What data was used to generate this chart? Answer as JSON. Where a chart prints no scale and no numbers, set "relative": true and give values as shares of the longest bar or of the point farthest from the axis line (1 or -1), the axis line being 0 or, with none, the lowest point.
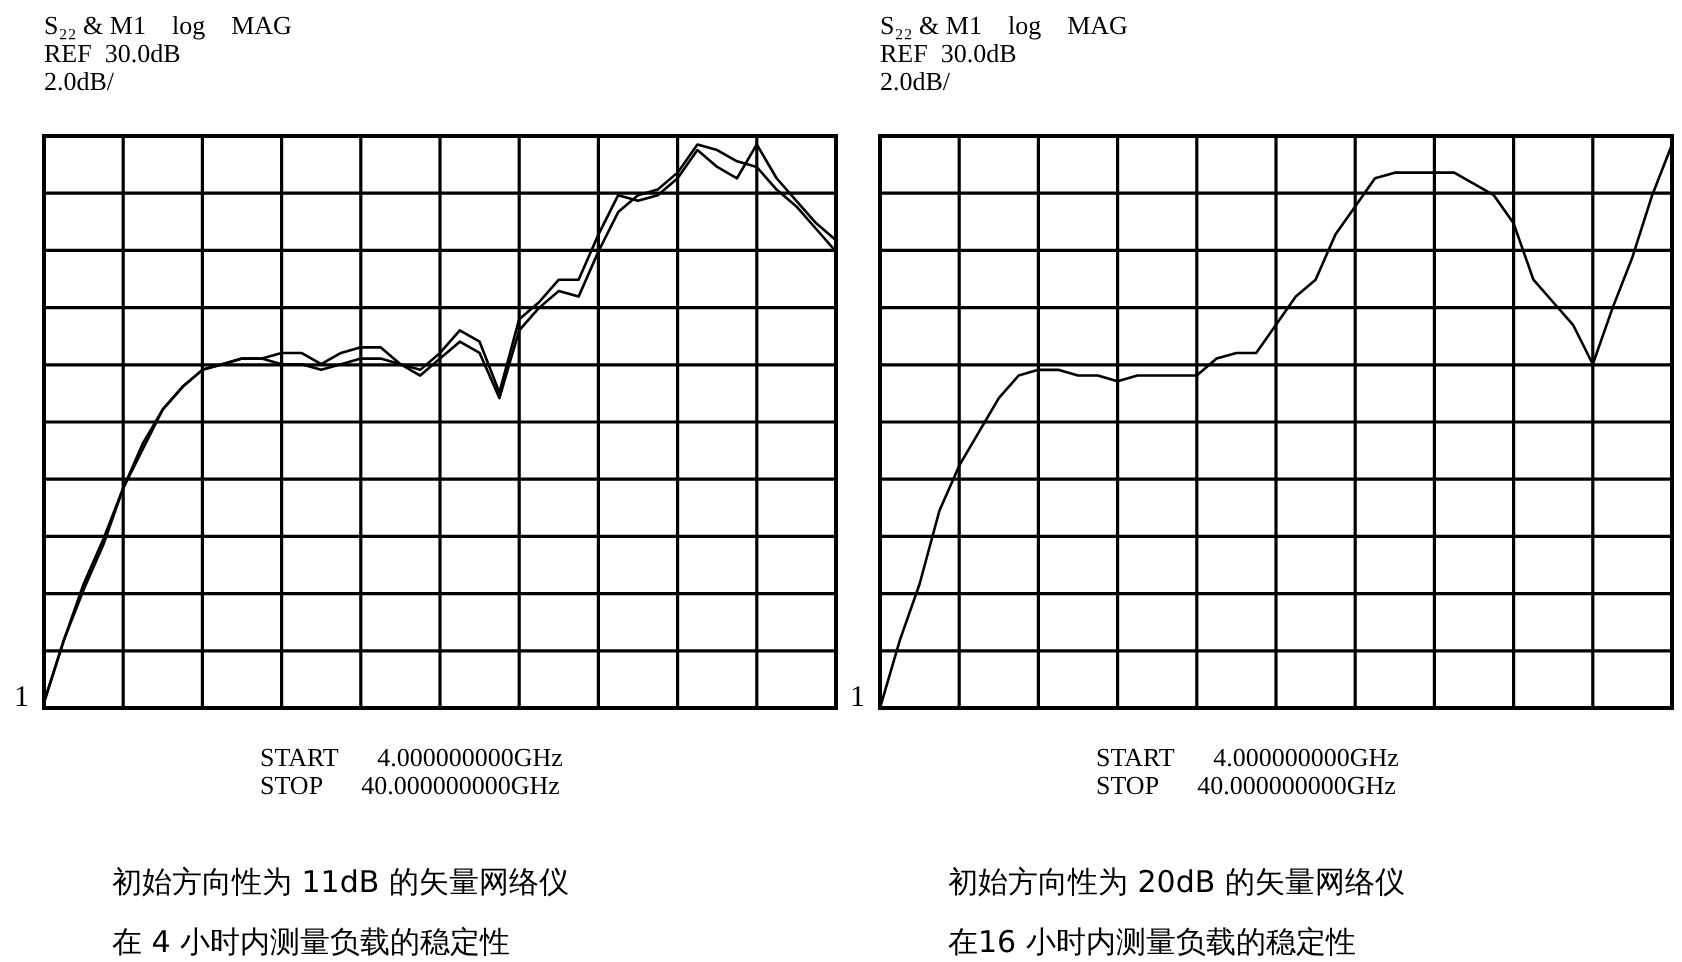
{
  "chart_data": [
    {
      "type": "line",
      "title": "S₂₂ & M1    log    MAG",
      "annotations": [
        "REF  30.0dB",
        "2.0dB/",
        "1",
        "START      4.000000000GHz",
        "STOP      40.000000000GHz",
        "初始方向性为 11dB 的矢量网络仪",
        "在 4 小时内测量负载的稳定性"
      ],
      "relative": true,
      "grid": true,
      "categories": [
        null,
        null,
        null,
        null,
        null,
        null,
        null,
        null,
        null,
        null,
        null,
        null,
        null,
        null,
        null,
        null,
        null,
        null,
        null,
        null,
        null,
        null,
        null,
        null,
        null,
        null,
        null,
        null,
        null,
        null,
        null,
        null,
        null,
        null,
        null,
        null,
        null,
        null,
        null,
        null,
        null
      ],
      "series": [
        {
          "color": "#000000",
          "values": [
            0.01,
            0.12,
            0.21,
            0.29,
            0.39,
            0.46,
            0.53,
            0.57,
            0.6,
            0.61,
            0.62,
            0.62,
            0.63,
            0.63,
            0.61,
            0.63,
            0.64,
            0.64,
            0.61,
            0.6,
            0.63,
            0.67,
            0.65,
            0.56,
            0.69,
            0.72,
            0.76,
            0.76,
            0.84,
            0.91,
            0.9,
            0.91,
            0.94,
            0.99,
            0.96,
            0.94,
            1,
            0.94,
            0.9,
            0.86,
            0.83
          ]
        },
        {
          "color": "#000000",
          "values": [
            0.01,
            0.12,
            0.22,
            0.3,
            0.39,
            0.47,
            0.53,
            0.57,
            0.6,
            0.61,
            0.62,
            0.62,
            0.61,
            0.61,
            0.6,
            0.61,
            0.62,
            0.62,
            0.61,
            0.59,
            0.62,
            0.65,
            0.63,
            0.55,
            0.67,
            0.71,
            0.74,
            0.73,
            0.81,
            0.88,
            0.91,
            0.92,
            0.95,
            1,
            0.99,
            0.97,
            0.96,
            0.92,
            0.89,
            0.85,
            0.81
          ]
        }
      ]
    },
    {
      "type": "line",
      "title": "S₂₂ & M1    log    MAG",
      "annotations": [
        "REF  30.0dB",
        "2.0dB/",
        "1",
        "START      4.000000000GHz",
        "STOP      40.000000000GHz",
        "初始方向性为 20dB 的矢量网络仪",
        "在16 小时内测量负载的稳定性"
      ],
      "relative": true,
      "grid": true,
      "categories": [
        null,
        null,
        null,
        null,
        null,
        null,
        null,
        null,
        null,
        null,
        null,
        null,
        null,
        null,
        null,
        null,
        null,
        null,
        null,
        null,
        null,
        null,
        null,
        null,
        null,
        null,
        null,
        null,
        null,
        null,
        null,
        null,
        null,
        null,
        null,
        null,
        null,
        null,
        null,
        null,
        null
      ],
      "series": [
        {
          "color": "#000000",
          "values": [
            0,
            0.12,
            0.22,
            0.35,
            0.43,
            0.49,
            0.55,
            0.59,
            0.6,
            0.6,
            0.59,
            0.59,
            0.58,
            0.59,
            0.59,
            0.59,
            0.59,
            0.62,
            0.63,
            0.63,
            0.68,
            0.73,
            0.76,
            0.84,
            0.89,
            0.94,
            0.95,
            0.95,
            0.95,
            0.95,
            0.93,
            0.91,
            0.86,
            0.76,
            0.72,
            0.68,
            0.61,
            0.71,
            0.8,
            0.91,
            1
          ]
        }
      ]
    }
  ]
}
